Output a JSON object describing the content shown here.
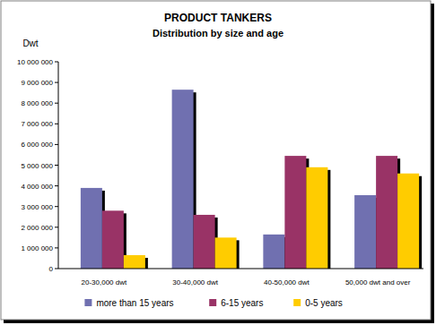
{
  "chart_data": {
    "type": "bar",
    "title": "PRODUCT TANKERS",
    "subtitle": "Distribution by size and age",
    "y_label": "Dwt",
    "categories": [
      "20-30,000 dwt",
      "30-40,000 dwt",
      "40-50,000 dwt",
      "50,000 dwt and over"
    ],
    "series": [
      {
        "name": "more than 15 years",
        "color": "#7070b0",
        "values": [
          3900000,
          8650000,
          1650000,
          3550000
        ]
      },
      {
        "name": "6-15 years",
        "color": "#993366",
        "values": [
          2800000,
          2600000,
          5450000,
          5450000
        ]
      },
      {
        "name": "0-5 years",
        "color": "#ffcc00",
        "values": [
          650000,
          1500000,
          4900000,
          4600000
        ]
      }
    ],
    "ylim": [
      0,
      10000000
    ],
    "yticks": [
      0,
      {
        "value": 1000000,
        "label": "1 000 000"
      },
      {
        "value": 2000000,
        "label": "2 000 000"
      },
      {
        "value": 3000000,
        "label": "3 000 000"
      },
      {
        "value": 4000000,
        "label": "4 000 000"
      },
      {
        "value": 5000000,
        "label": "5 000 000"
      },
      {
        "value": 6000000,
        "label": "6 000 000"
      },
      {
        "value": 7000000,
        "label": "7 000 000"
      },
      {
        "value": 8000000,
        "label": "8 000 000"
      },
      {
        "value": 9000000,
        "label": "9 000 000"
      },
      {
        "value": 10000000,
        "label": "10 000 000"
      }
    ],
    "grid": false,
    "legend": "bottom"
  }
}
